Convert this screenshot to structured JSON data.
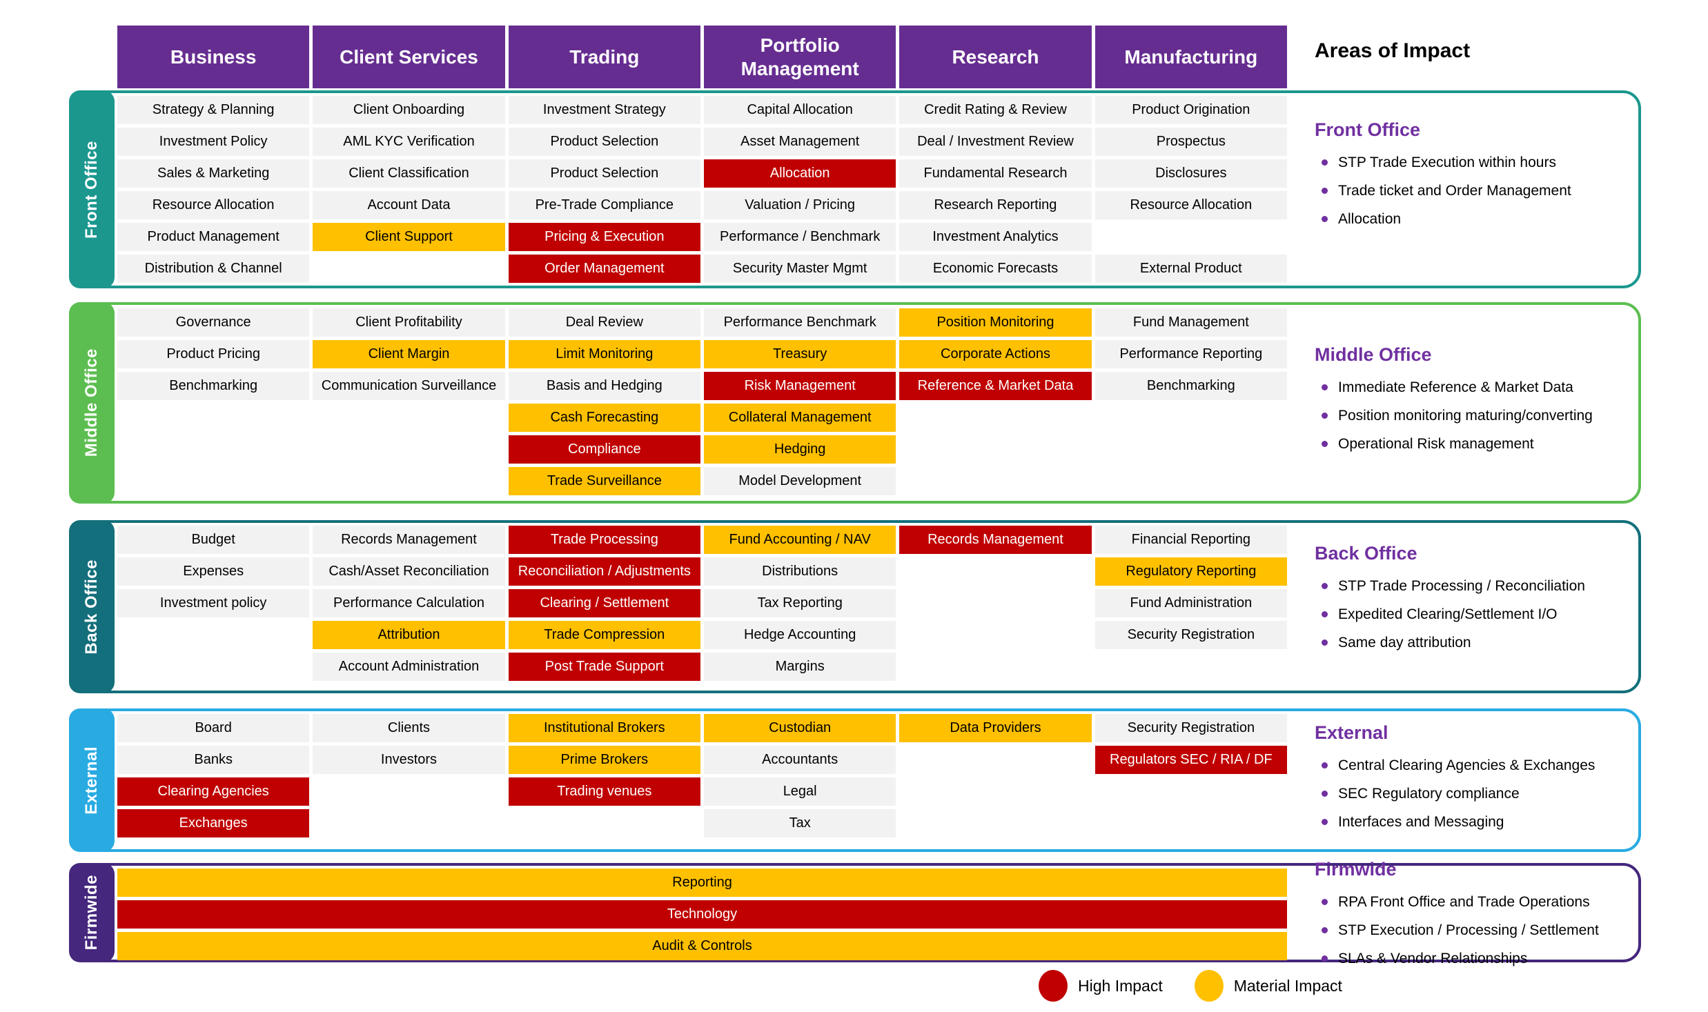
{
  "title": {
    "areas_of_impact": "Areas of Impact"
  },
  "matrix_columns": [
    "Business",
    "Client Services",
    "Trading",
    "Portfolio Management",
    "Research",
    "Manufacturing"
  ],
  "colors": {
    "header_purple": "#662D91",
    "cell_default": "#F2F2F2",
    "high_impact_red": "#C00000",
    "material_impact_yellow": "#FFC000",
    "panel_heading_purple": "#7030A0",
    "front_office": "#1B978E",
    "middle_office": "#5CBE50",
    "back_office": "#136F7B",
    "external": "#29ABE2",
    "firmwide": "#45277D"
  },
  "legend": [
    {
      "label": "High Impact",
      "color": "#C00000"
    },
    {
      "label": "Material Impact",
      "color": "#FFC000"
    }
  ],
  "bands": [
    {
      "id": "front-office",
      "label": "Front Office",
      "color": "#1B978E",
      "type": "matrix",
      "columns": [
        [
          {
            "t": "Strategy & Planning"
          },
          {
            "t": "Investment Policy"
          },
          {
            "t": "Sales & Marketing"
          },
          {
            "t": "Resource Allocation"
          },
          {
            "t": "Product Management"
          },
          {
            "t": "Distribution & Channel"
          }
        ],
        [
          {
            "t": "Client Onboarding"
          },
          {
            "t": "AML KYC Verification"
          },
          {
            "t": "Client Classification"
          },
          {
            "t": "Account Data"
          },
          {
            "t": "Client Support",
            "i": "m"
          },
          null
        ],
        [
          {
            "t": "Investment Strategy"
          },
          {
            "t": "Product Selection"
          },
          {
            "t": "Product Selection"
          },
          {
            "t": "Pre-Trade Compliance"
          },
          {
            "t": "Pricing & Execution",
            "i": "h"
          },
          {
            "t": "Order Management",
            "i": "h"
          }
        ],
        [
          {
            "t": "Capital Allocation"
          },
          {
            "t": "Asset Management"
          },
          {
            "t": "Allocation",
            "i": "h"
          },
          {
            "t": "Valuation / Pricing"
          },
          {
            "t": "Performance / Benchmark"
          },
          {
            "t": "Security Master Mgmt"
          }
        ],
        [
          {
            "t": "Credit Rating & Review"
          },
          {
            "t": "Deal / Investment Review"
          },
          {
            "t": "Fundamental Research"
          },
          {
            "t": "Research Reporting"
          },
          {
            "t": "Investment Analytics"
          },
          {
            "t": "Economic Forecasts"
          }
        ],
        [
          {
            "t": "Product Origination"
          },
          {
            "t": "Prospectus"
          },
          {
            "t": "Disclosures"
          },
          {
            "t": "Resource Allocation"
          },
          null,
          {
            "t": "External Product"
          }
        ]
      ],
      "panel": {
        "title": "Front Office",
        "bullets": [
          "STP Trade Execution within hours",
          "Trade ticket and Order Management",
          "Allocation"
        ]
      }
    },
    {
      "id": "middle-office",
      "label": "Middle Office",
      "color": "#5CBE50",
      "type": "matrix",
      "columns": [
        [
          {
            "t": "Governance"
          },
          {
            "t": "Product Pricing"
          },
          {
            "t": "Benchmarking"
          },
          null,
          null,
          null
        ],
        [
          {
            "t": "Client Profitability"
          },
          {
            "t": "Client Margin",
            "i": "m"
          },
          {
            "t": "Communication Surveillance"
          },
          null,
          null,
          null
        ],
        [
          {
            "t": "Deal Review"
          },
          {
            "t": "Limit Monitoring",
            "i": "m"
          },
          {
            "t": "Basis and Hedging"
          },
          {
            "t": "Cash Forecasting",
            "i": "m"
          },
          {
            "t": "Compliance",
            "i": "h"
          },
          {
            "t": "Trade Surveillance",
            "i": "m"
          }
        ],
        [
          {
            "t": "Performance Benchmark"
          },
          {
            "t": "Treasury",
            "i": "m"
          },
          {
            "t": "Risk Management",
            "i": "h"
          },
          {
            "t": "Collateral Management",
            "i": "m"
          },
          {
            "t": "Hedging",
            "i": "m"
          },
          {
            "t": "Model Development"
          }
        ],
        [
          {
            "t": "Position Monitoring",
            "i": "m"
          },
          {
            "t": "Corporate Actions",
            "i": "m"
          },
          {
            "t": "Reference & Market Data",
            "i": "h"
          },
          null,
          null,
          null
        ],
        [
          {
            "t": "Fund Management"
          },
          {
            "t": "Performance Reporting"
          },
          {
            "t": "Benchmarking"
          },
          null,
          null,
          null
        ]
      ],
      "panel": {
        "title": "Middle Office",
        "bullets": [
          "Immediate Reference & Market Data",
          "Position monitoring maturing/converting",
          "Operational Risk management"
        ]
      }
    },
    {
      "id": "back-office",
      "label": "Back Office",
      "color": "#136F7B",
      "type": "matrix",
      "columns": [
        [
          {
            "t": "Budget"
          },
          {
            "t": "Expenses"
          },
          {
            "t": "Investment policy"
          },
          null,
          null
        ],
        [
          {
            "t": "Records Management"
          },
          {
            "t": "Cash/Asset Reconciliation"
          },
          {
            "t": "Performance Calculation"
          },
          {
            "t": "Attribution",
            "i": "m"
          },
          {
            "t": "Account Administration"
          }
        ],
        [
          {
            "t": "Trade Processing",
            "i": "h"
          },
          {
            "t": "Reconciliation / Adjustments",
            "i": "h"
          },
          {
            "t": "Clearing / Settlement",
            "i": "h"
          },
          {
            "t": "Trade Compression",
            "i": "m"
          },
          {
            "t": "Post Trade Support",
            "i": "h"
          }
        ],
        [
          {
            "t": "Fund Accounting / NAV",
            "i": "m"
          },
          {
            "t": "Distributions"
          },
          {
            "t": "Tax Reporting"
          },
          {
            "t": "Hedge Accounting"
          },
          {
            "t": "Margins"
          }
        ],
        [
          {
            "t": "Records Management",
            "i": "h"
          },
          null,
          null,
          null,
          null
        ],
        [
          {
            "t": "Financial Reporting"
          },
          {
            "t": "Regulatory Reporting",
            "i": "m"
          },
          {
            "t": "Fund Administration"
          },
          {
            "t": "Security Registration"
          },
          null
        ]
      ],
      "panel": {
        "title": "Back Office",
        "bullets": [
          "STP Trade Processing / Reconciliation",
          "Expedited Clearing/Settlement I/O",
          "Same day attribution"
        ]
      }
    },
    {
      "id": "external",
      "label": "External",
      "color": "#29ABE2",
      "type": "matrix",
      "columns": [
        [
          {
            "t": "Board"
          },
          {
            "t": "Banks"
          },
          {
            "t": "Clearing Agencies",
            "i": "h"
          },
          {
            "t": "Exchanges",
            "i": "h"
          }
        ],
        [
          {
            "t": "Clients"
          },
          {
            "t": "Investors"
          },
          null,
          null
        ],
        [
          {
            "t": "Institutional Brokers",
            "i": "m"
          },
          {
            "t": "Prime Brokers",
            "i": "m"
          },
          {
            "t": "Trading venues",
            "i": "h"
          },
          null
        ],
        [
          {
            "t": "Custodian",
            "i": "m"
          },
          {
            "t": "Accountants"
          },
          {
            "t": "Legal"
          },
          {
            "t": "Tax"
          }
        ],
        [
          {
            "t": "Data Providers",
            "i": "m"
          },
          null,
          null,
          null
        ],
        [
          {
            "t": "Security Registration"
          },
          {
            "t": "Regulators SEC / RIA / DF",
            "i": "h"
          },
          null,
          null
        ]
      ],
      "panel": {
        "title": "External",
        "bullets": [
          "Central Clearing Agencies & Exchanges",
          "SEC Regulatory compliance",
          "Interfaces and Messaging"
        ]
      }
    },
    {
      "id": "firmwide",
      "label": "Firmwide",
      "color": "#45277D",
      "type": "bars",
      "bars": [
        {
          "t": "Reporting",
          "i": "m"
        },
        {
          "t": "Technology",
          "i": "h"
        },
        {
          "t": "Audit & Controls",
          "i": "m"
        }
      ],
      "panel": {
        "title": "Firmwide",
        "bullets": [
          "RPA Front Office and Trade Operations",
          "STP Execution / Processing / Settlement",
          "SLAs & Vendor Relationships"
        ]
      }
    }
  ]
}
